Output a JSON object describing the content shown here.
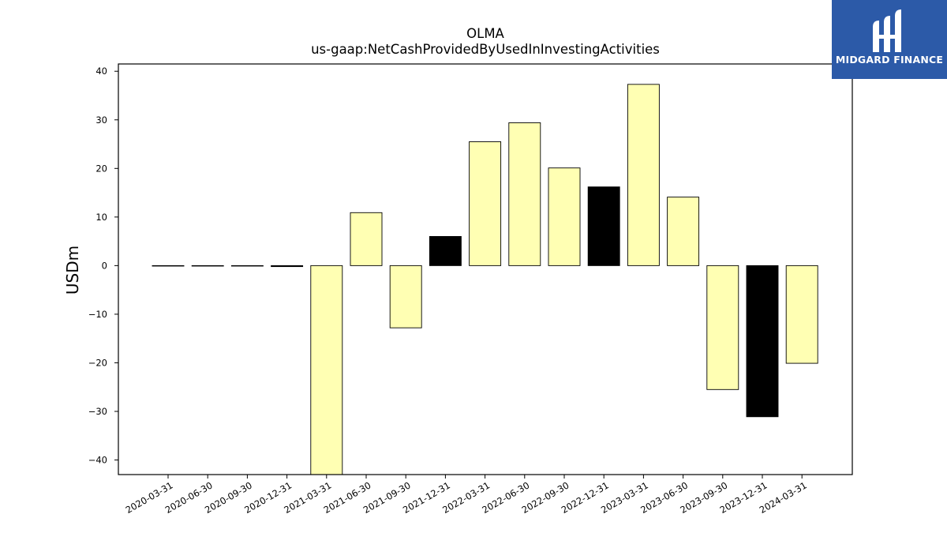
{
  "chart_data": {
    "type": "bar",
    "title": "OLMA",
    "subtitle": "us-gaap:NetCashProvidedByUsedInInvestingActivities",
    "xlabel": "",
    "ylabel": "USDm",
    "ylim": [
      -43,
      41.5
    ],
    "yticks": [
      -40,
      -30,
      -20,
      -10,
      0,
      10,
      20,
      30,
      40
    ],
    "ytick_labels": [
      "−40",
      "−30",
      "−20",
      "−10",
      "0",
      "10",
      "20",
      "30",
      "40"
    ],
    "grid": false,
    "categories": [
      "2020-03-31",
      "2020-06-30",
      "2020-09-30",
      "2020-12-31",
      "2021-03-31",
      "2021-06-30",
      "2021-09-30",
      "2021-12-31",
      "2022-03-31",
      "2022-06-30",
      "2022-09-30",
      "2022-12-31",
      "2023-03-31",
      "2023-06-30",
      "2023-09-30",
      "2023-12-31",
      "2024-03-31"
    ],
    "values": [
      0.0,
      0.0,
      0.0,
      -0.2,
      -43,
      10.9,
      -12.8,
      6.0,
      25.5,
      29.4,
      20.1,
      16.2,
      37.3,
      14.1,
      -25.5,
      -31.1,
      -20.1
    ],
    "bar_colors": [
      "#ffffb3",
      "#ffffb3",
      "#ffffb3",
      "#000000",
      "#ffffb3",
      "#ffffb3",
      "#ffffb3",
      "#000000",
      "#ffffb3",
      "#ffffb3",
      "#ffffb3",
      "#000000",
      "#ffffb3",
      "#ffffb3",
      "#ffffb3",
      "#000000",
      "#ffffb3"
    ]
  },
  "logo": {
    "text": "MIDGARD FINANCE",
    "background": "#2c5aa8"
  }
}
